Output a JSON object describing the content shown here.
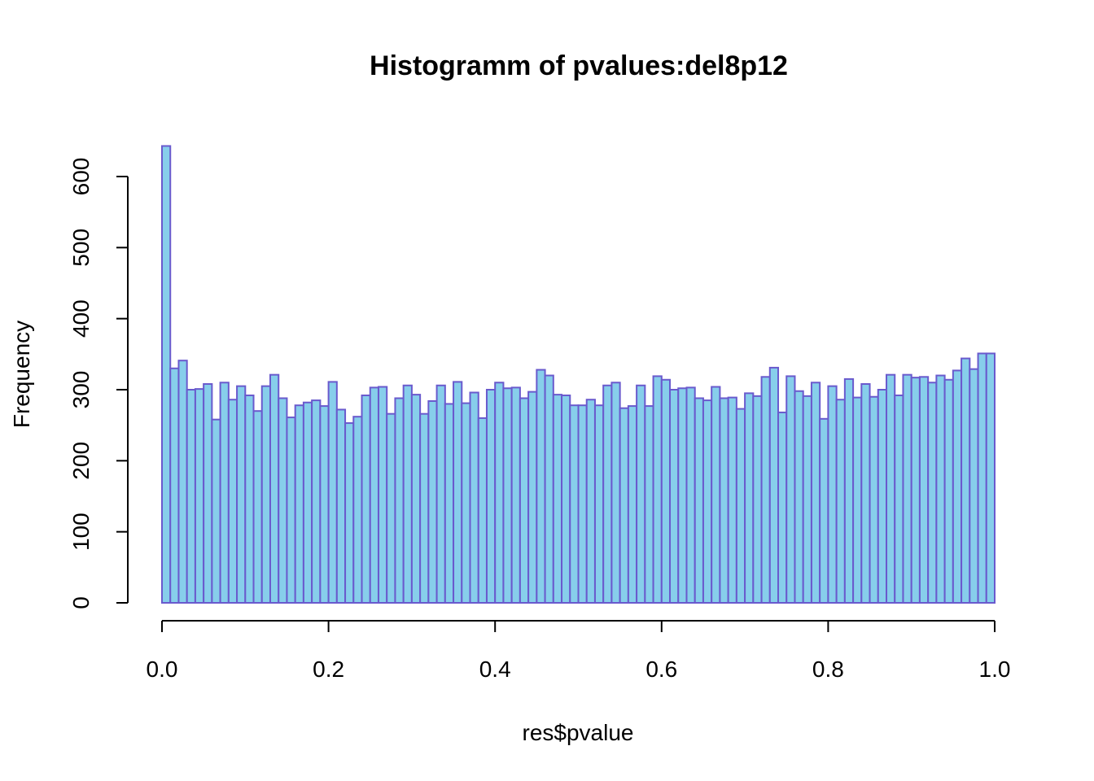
{
  "chart_data": {
    "type": "bar",
    "title": "Histogramm of pvalues:del8p12",
    "xlabel": "res$pvalue",
    "ylabel": "Frequency",
    "xlim": [
      0,
      1
    ],
    "ylim": [
      0,
      600
    ],
    "bin_width": 0.01,
    "x_ticks": [
      0.0,
      0.2,
      0.4,
      0.6,
      0.8,
      1.0
    ],
    "x_tick_labels": [
      "0.0",
      "0.2",
      "0.4",
      "0.6",
      "0.8",
      "1.0"
    ],
    "y_ticks": [
      0,
      100,
      200,
      300,
      400,
      500,
      600
    ],
    "y_tick_labels": [
      "0",
      "100",
      "200",
      "300",
      "400",
      "500",
      "600"
    ],
    "colors": {
      "fill": "#87ceeb",
      "border": "#6a5acd"
    },
    "values": [
      643,
      330,
      341,
      300,
      301,
      308,
      258,
      310,
      286,
      305,
      292,
      270,
      305,
      321,
      288,
      261,
      278,
      282,
      285,
      277,
      311,
      272,
      253,
      262,
      292,
      303,
      304,
      266,
      288,
      306,
      293,
      266,
      284,
      306,
      280,
      311,
      281,
      296,
      260,
      300,
      310,
      302,
      303,
      288,
      297,
      328,
      320,
      293,
      292,
      278,
      278,
      286,
      278,
      306,
      310,
      274,
      277,
      306,
      277,
      319,
      314,
      300,
      302,
      303,
      288,
      285,
      304,
      288,
      289,
      273,
      295,
      291,
      318,
      331,
      268,
      319,
      298,
      291,
      310,
      259,
      305,
      286,
      315,
      289,
      308,
      290,
      300,
      321,
      292,
      321,
      317,
      318,
      310,
      320,
      314,
      327,
      344,
      329,
      351,
      351
    ]
  }
}
